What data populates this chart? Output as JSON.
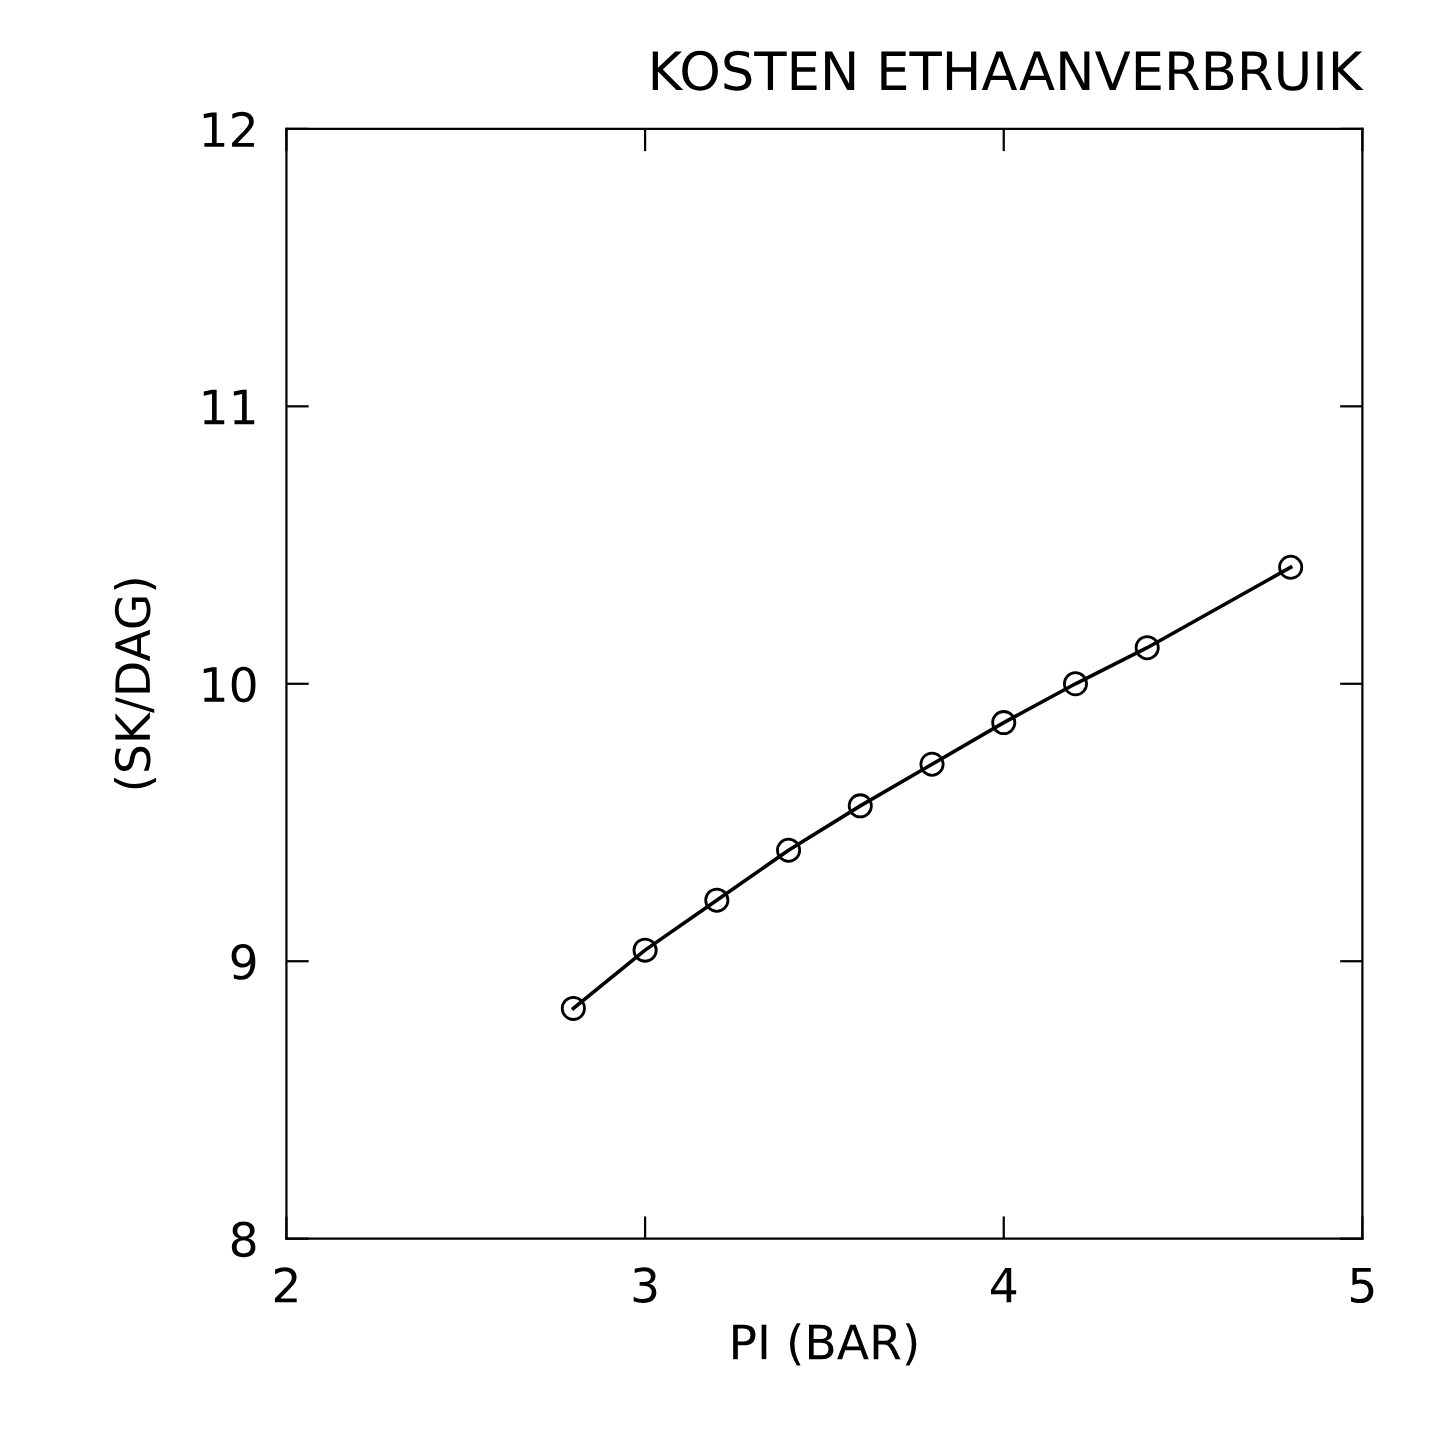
{
  "chart_data": {
    "type": "line",
    "title": "KOSTEN ETHAANVERBRUIK",
    "xlabel": "PI (BAR)",
    "ylabel": "(SK/DAG)",
    "x": [
      2.8,
      3.0,
      3.2,
      3.4,
      3.6,
      3.8,
      4.0,
      4.2,
      4.4,
      4.8
    ],
    "series": [
      {
        "color": "#000000",
        "values": [
          8.83,
          9.04,
          9.22,
          9.4,
          9.56,
          9.71,
          9.86,
          10.0,
          10.13,
          10.42
        ]
      }
    ],
    "marker": "circle",
    "line_style": "solid",
    "grid": false,
    "legend": false,
    "xlim": [
      2,
      5
    ],
    "xticks": [
      2,
      3,
      4,
      5
    ],
    "ylim": [
      8,
      12
    ],
    "yticks": [
      8,
      9,
      10,
      11,
      12
    ]
  }
}
